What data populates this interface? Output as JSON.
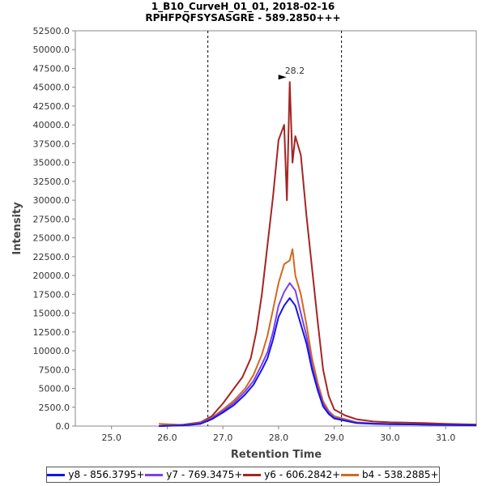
{
  "chart_data": {
    "type": "line",
    "title": "1_B10_CurveH_01_01, 2018-02-16",
    "subtitle": "RPHFPQFSYSASGRE - 589.2850+++",
    "xlabel": "Retention Time",
    "ylabel": "Intensity",
    "xlim": [
      24.35,
      31.55
    ],
    "ylim": [
      0,
      52500
    ],
    "x_ticks": [
      "25.0",
      "26.0",
      "27.0",
      "28.0",
      "29.0",
      "30.0",
      "31.0"
    ],
    "x_tick_values": [
      25,
      26,
      27,
      28,
      29,
      30,
      31
    ],
    "y_ticks": [
      "0.0",
      "2500.0",
      "5000.0",
      "7500.0",
      "10000.0",
      "12500.0",
      "15000.0",
      "17500.0",
      "20000.0",
      "22500.0",
      "25000.0",
      "27500.0",
      "30000.0",
      "32500.0",
      "35000.0",
      "37500.0",
      "40000.0",
      "42500.0",
      "45000.0",
      "47500.0",
      "50000.0",
      "52500.0"
    ],
    "y_tick_values": [
      0,
      2500,
      5000,
      7500,
      10000,
      12500,
      15000,
      17500,
      20000,
      22500,
      25000,
      27500,
      30000,
      32500,
      35000,
      37500,
      40000,
      42500,
      45000,
      47500,
      50000,
      52500
    ],
    "integration_bounds": [
      26.73,
      29.13
    ],
    "peak_annotation": {
      "label": "28.2",
      "x": 28.2,
      "y": 45700
    },
    "legend_position": "bottom",
    "series": [
      {
        "name": "y8 - 856.3795+",
        "color": "#1515e6",
        "x": [
          25.85,
          26.3,
          26.6,
          26.8,
          27.0,
          27.2,
          27.4,
          27.55,
          27.7,
          27.8,
          27.9,
          28.0,
          28.1,
          28.2,
          28.3,
          28.4,
          28.5,
          28.6,
          28.7,
          28.8,
          28.9,
          29.0,
          29.2,
          29.4,
          29.7,
          30.0,
          30.5,
          31.0,
          31.55
        ],
        "values": [
          0,
          100,
          300,
          900,
          1800,
          2800,
          4200,
          5500,
          7500,
          9000,
          11500,
          14500,
          16000,
          17000,
          16000,
          13500,
          11000,
          7500,
          4800,
          2600,
          1600,
          1000,
          700,
          400,
          300,
          250,
          200,
          150,
          100
        ]
      },
      {
        "name": "y7 - 769.3475+",
        "color": "#7b3ff0",
        "x": [
          25.85,
          26.3,
          26.6,
          26.8,
          27.0,
          27.2,
          27.4,
          27.55,
          27.7,
          27.8,
          27.9,
          28.0,
          28.1,
          28.2,
          28.3,
          28.4,
          28.5,
          28.6,
          28.7,
          28.8,
          28.9,
          29.0,
          29.2,
          29.4,
          29.7,
          30.0,
          30.5,
          31.0,
          31.55
        ],
        "values": [
          0,
          120,
          350,
          1000,
          2000,
          3100,
          4600,
          6000,
          8200,
          9800,
          12500,
          16000,
          17800,
          19000,
          18000,
          15000,
          12000,
          8000,
          5200,
          2900,
          1800,
          1100,
          800,
          450,
          320,
          260,
          210,
          160,
          100
        ]
      },
      {
        "name": "y6 - 606.2842+",
        "color": "#a52424",
        "x": [
          25.85,
          26.3,
          26.6,
          26.8,
          27.0,
          27.2,
          27.35,
          27.5,
          27.6,
          27.7,
          27.8,
          27.9,
          28.0,
          28.1,
          28.15,
          28.2,
          28.25,
          28.3,
          28.4,
          28.5,
          28.6,
          28.7,
          28.8,
          28.9,
          29.0,
          29.2,
          29.4,
          29.7,
          30.0,
          30.3,
          30.6,
          31.0,
          31.55
        ],
        "values": [
          0,
          200,
          500,
          1300,
          3000,
          5000,
          6500,
          9000,
          12500,
          17500,
          24000,
          30500,
          38000,
          40000,
          30000,
          45700,
          35000,
          38500,
          36000,
          28000,
          21000,
          14000,
          7500,
          4000,
          2200,
          1400,
          900,
          600,
          500,
          450,
          400,
          300,
          200
        ]
      },
      {
        "name": "b4 - 538.2885+",
        "color": "#d2691e",
        "x": [
          25.85,
          26.3,
          26.6,
          26.8,
          27.0,
          27.2,
          27.4,
          27.55,
          27.7,
          27.8,
          27.9,
          28.0,
          28.1,
          28.2,
          28.25,
          28.3,
          28.4,
          28.5,
          28.6,
          28.7,
          28.8,
          28.9,
          29.0,
          29.2,
          29.4,
          29.7,
          30.0,
          30.5,
          31.0,
          31.55
        ],
        "values": [
          300,
          150,
          400,
          1100,
          2200,
          3400,
          5000,
          6800,
          9500,
          12000,
          15500,
          19000,
          21500,
          22000,
          23500,
          20000,
          17500,
          13500,
          9000,
          5800,
          3300,
          2000,
          1300,
          900,
          500,
          350,
          280,
          220,
          170,
          100
        ]
      }
    ]
  },
  "legend": [
    {
      "label": "y8 - 856.3795+",
      "color": "#1515e6"
    },
    {
      "label": "y7 - 769.3475+",
      "color": "#7b3ff0"
    },
    {
      "label": "y6 - 606.2842+",
      "color": "#a52424"
    },
    {
      "label": "b4 - 538.2885+",
      "color": "#d2691e"
    }
  ]
}
